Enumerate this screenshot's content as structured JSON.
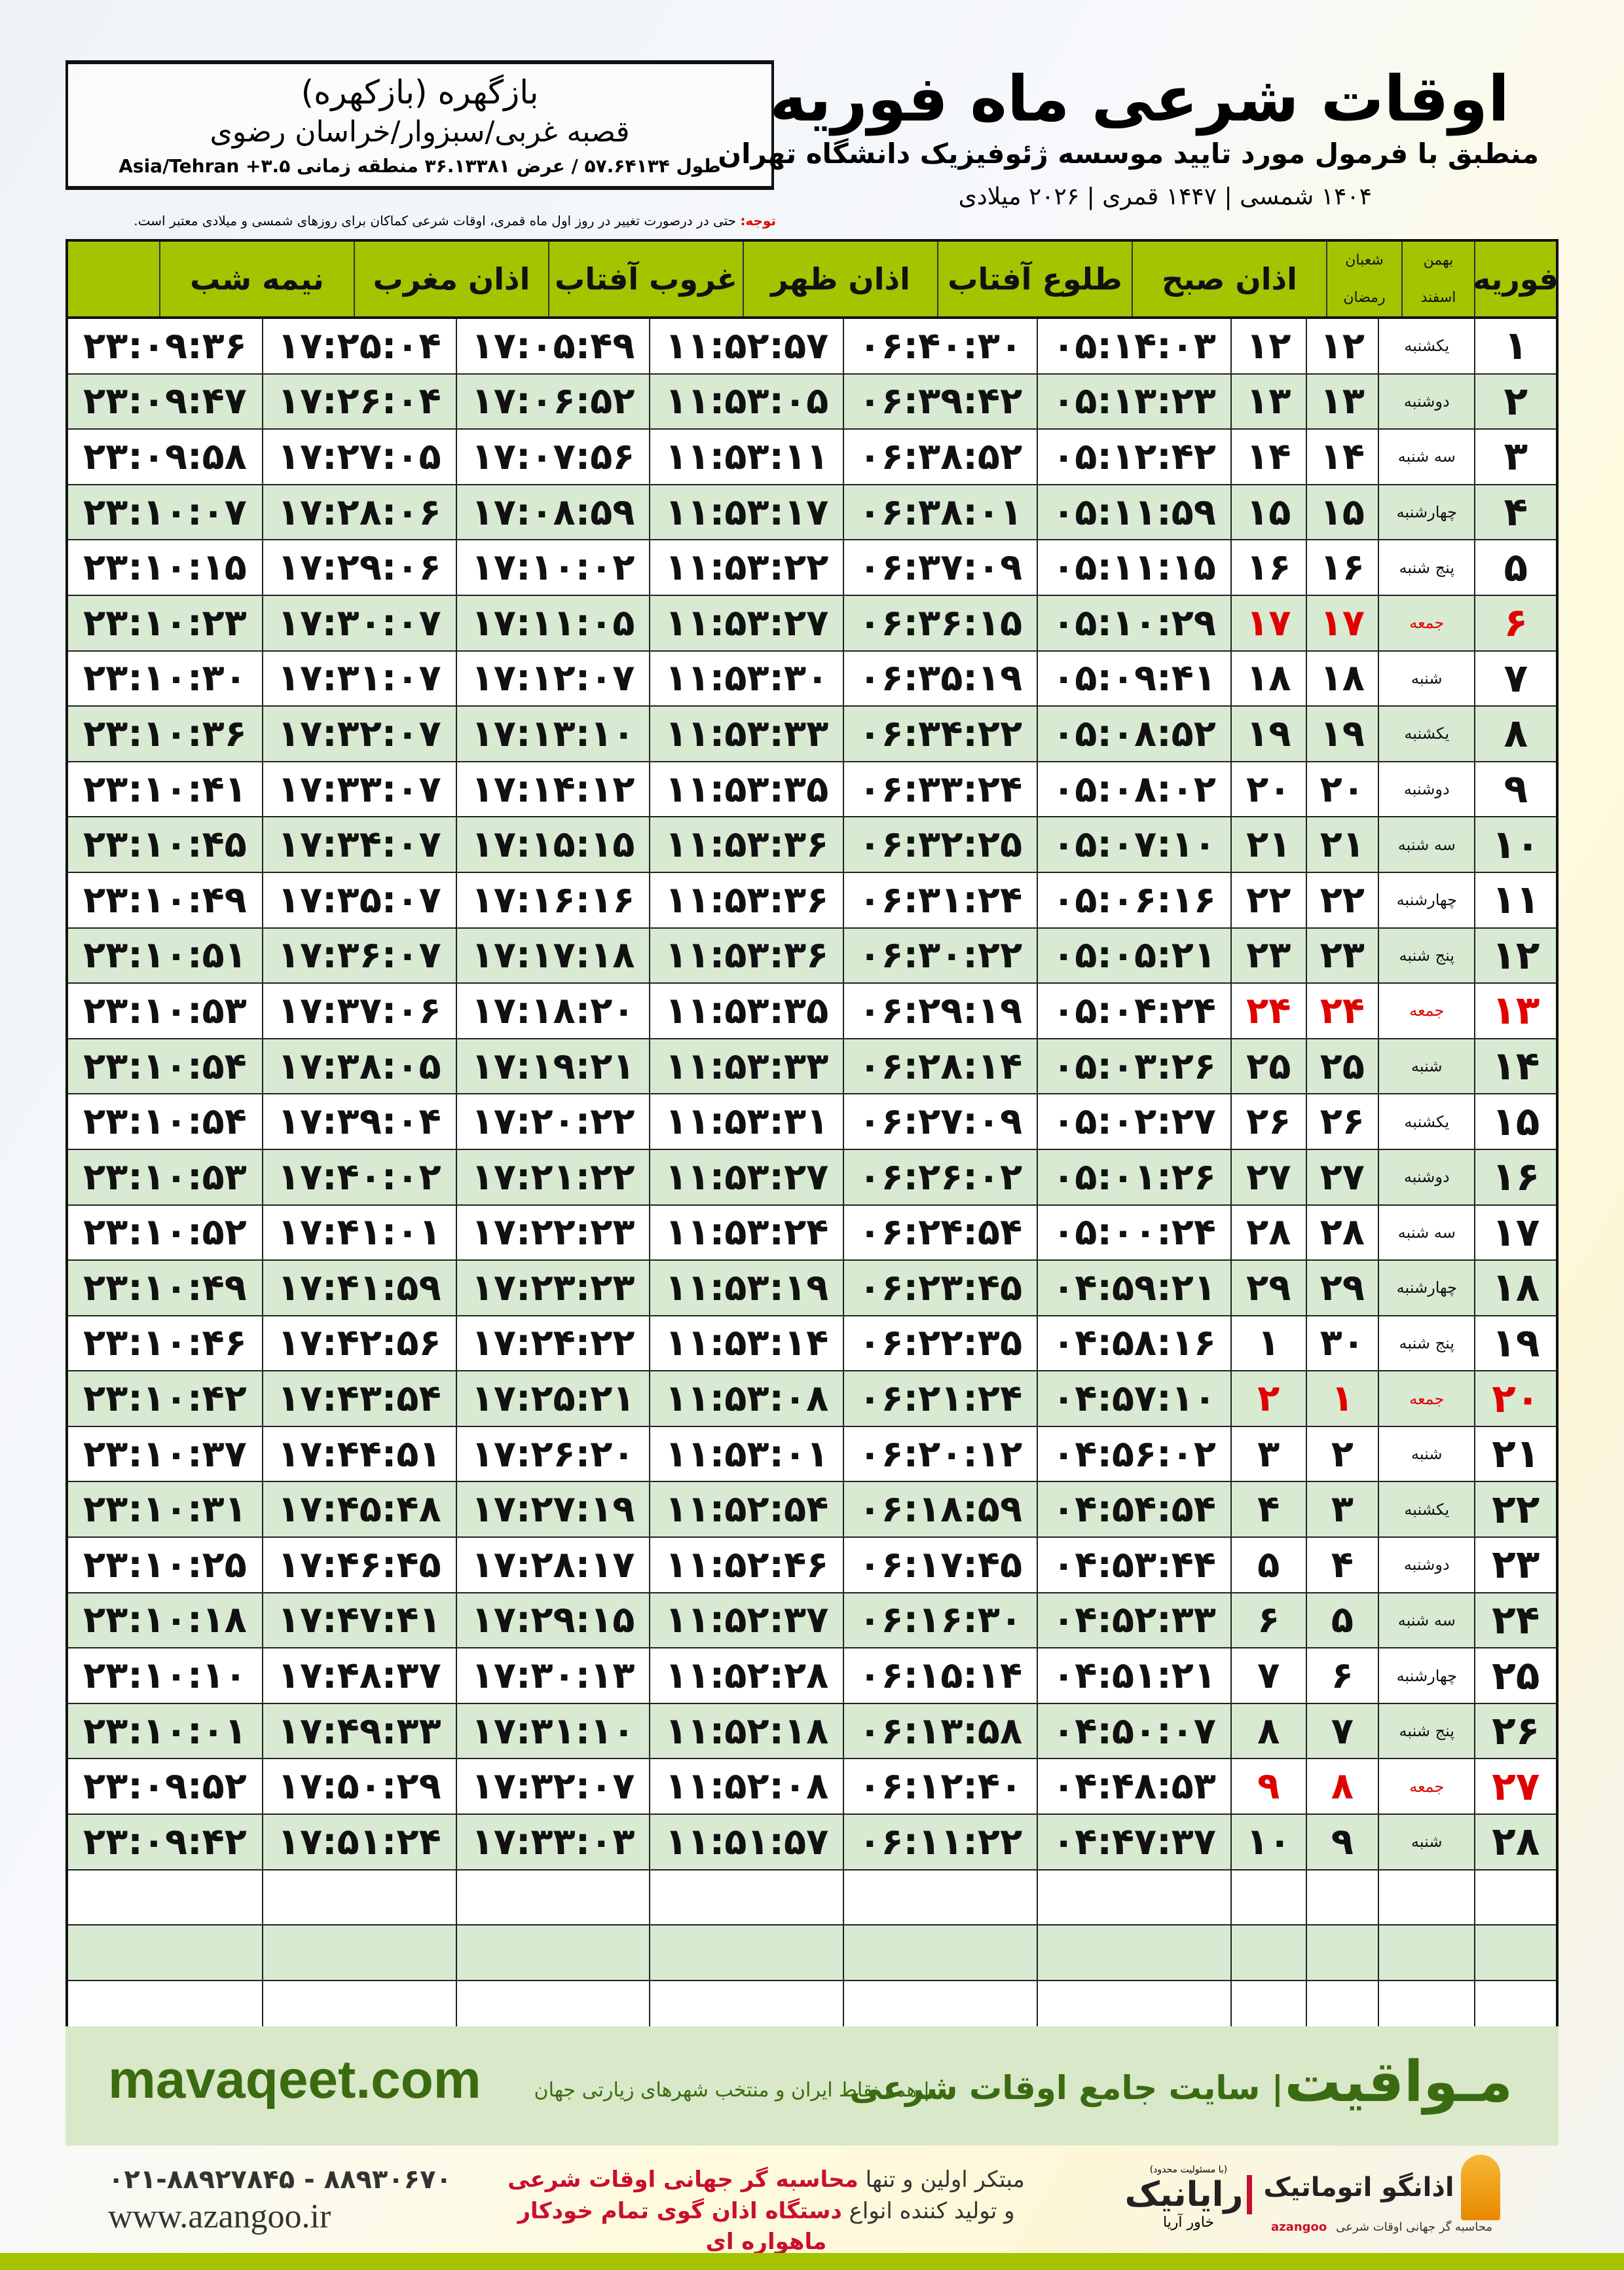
{
  "location": {
    "name": "بازگهره (بازکهره)",
    "region": "قصبه غربی/سبزوار/خراسان رضوی",
    "coords": "طول ۵۷.۶۴۱۳۴ / عرض ۳۶.۱۳۳۸۱ منطقه زمانی ۳.۵+ Asia/Tehran"
  },
  "header": {
    "title": "اوقات شرعی ماه فوریه",
    "subtitle": "منطبق با فرمول مورد تایید موسسه ژئوفیزیک دانشگاه تهران",
    "dateline": "۱۴۰۴ شمسی | ۱۴۴۷ قمری | ۲۰۲۶ میلادی"
  },
  "note": {
    "label": "توجه:",
    "text": " حتی در درصورت تغییر در روز اول ماه قمری، اوقات شرعی کماکان برای روزهای شمسی و میلادی معتبر است."
  },
  "colors": {
    "header_green": "#a4c400",
    "row_green": "#d9ead3",
    "friday_red": "#e00000",
    "brand_green": "#3a6b10"
  },
  "table": {
    "columns": {
      "day": "فوریه",
      "bahman": "بهمن",
      "esfand": "اسفند",
      "shaban": "شعبان",
      "ramazan": "رمضان",
      "sobh": "اذان صبح",
      "tolu": "طلوع آفتاب",
      "zohr": "اذان ظهر",
      "ghoroob": "غروب آفتاب",
      "maghreb": "اذان مغرب",
      "nimeh": "نیمه شب"
    },
    "rows": [
      [
        "۱",
        "یکشنبه",
        "۱۲",
        "۱۲",
        "۰۵:۱۴:۰۳",
        "۰۶:۴۰:۳۰",
        "۱۱:۵۲:۵۷",
        "۱۷:۰۵:۴۹",
        "۱۷:۲۵:۰۴",
        "۲۳:۰۹:۳۶"
      ],
      [
        "۲",
        "دوشنبه",
        "۱۳",
        "۱۳",
        "۰۵:۱۳:۲۳",
        "۰۶:۳۹:۴۲",
        "۱۱:۵۳:۰۵",
        "۱۷:۰۶:۵۲",
        "۱۷:۲۶:۰۴",
        "۲۳:۰۹:۴۷"
      ],
      [
        "۳",
        "سه شنبه",
        "۱۴",
        "۱۴",
        "۰۵:۱۲:۴۲",
        "۰۶:۳۸:۵۲",
        "۱۱:۵۳:۱۱",
        "۱۷:۰۷:۵۶",
        "۱۷:۲۷:۰۵",
        "۲۳:۰۹:۵۸"
      ],
      [
        "۴",
        "چهارشنبه",
        "۱۵",
        "۱۵",
        "۰۵:۱۱:۵۹",
        "۰۶:۳۸:۰۱",
        "۱۱:۵۳:۱۷",
        "۱۷:۰۸:۵۹",
        "۱۷:۲۸:۰۶",
        "۲۳:۱۰:۰۷"
      ],
      [
        "۵",
        "پنج شنبه",
        "۱۶",
        "۱۶",
        "۰۵:۱۱:۱۵",
        "۰۶:۳۷:۰۹",
        "۱۱:۵۳:۲۲",
        "۱۷:۱۰:۰۲",
        "۱۷:۲۹:۰۶",
        "۲۳:۱۰:۱۵"
      ],
      [
        "۶",
        "جمعه",
        "۱۷",
        "۱۷",
        "۰۵:۱۰:۲۹",
        "۰۶:۳۶:۱۵",
        "۱۱:۵۳:۲۷",
        "۱۷:۱۱:۰۵",
        "۱۷:۳۰:۰۷",
        "۲۳:۱۰:۲۳"
      ],
      [
        "۷",
        "شنبه",
        "۱۸",
        "۱۸",
        "۰۵:۰۹:۴۱",
        "۰۶:۳۵:۱۹",
        "۱۱:۵۳:۳۰",
        "۱۷:۱۲:۰۷",
        "۱۷:۳۱:۰۷",
        "۲۳:۱۰:۳۰"
      ],
      [
        "۸",
        "یکشنبه",
        "۱۹",
        "۱۹",
        "۰۵:۰۸:۵۲",
        "۰۶:۳۴:۲۲",
        "۱۱:۵۳:۳۳",
        "۱۷:۱۳:۱۰",
        "۱۷:۳۲:۰۷",
        "۲۳:۱۰:۳۶"
      ],
      [
        "۹",
        "دوشنبه",
        "۲۰",
        "۲۰",
        "۰۵:۰۸:۰۲",
        "۰۶:۳۳:۲۴",
        "۱۱:۵۳:۳۵",
        "۱۷:۱۴:۱۲",
        "۱۷:۳۳:۰۷",
        "۲۳:۱۰:۴۱"
      ],
      [
        "۱۰",
        "سه شنبه",
        "۲۱",
        "۲۱",
        "۰۵:۰۷:۱۰",
        "۰۶:۳۲:۲۵",
        "۱۱:۵۳:۳۶",
        "۱۷:۱۵:۱۵",
        "۱۷:۳۴:۰۷",
        "۲۳:۱۰:۴۵"
      ],
      [
        "۱۱",
        "چهارشنبه",
        "۲۲",
        "۲۲",
        "۰۵:۰۶:۱۶",
        "۰۶:۳۱:۲۴",
        "۱۱:۵۳:۳۶",
        "۱۷:۱۶:۱۶",
        "۱۷:۳۵:۰۷",
        "۲۳:۱۰:۴۹"
      ],
      [
        "۱۲",
        "پنج شنبه",
        "۲۳",
        "۲۳",
        "۰۵:۰۵:۲۱",
        "۰۶:۳۰:۲۲",
        "۱۱:۵۳:۳۶",
        "۱۷:۱۷:۱۸",
        "۱۷:۳۶:۰۷",
        "۲۳:۱۰:۵۱"
      ],
      [
        "۱۳",
        "جمعه",
        "۲۴",
        "۲۴",
        "۰۵:۰۴:۲۴",
        "۰۶:۲۹:۱۹",
        "۱۱:۵۳:۳۵",
        "۱۷:۱۸:۲۰",
        "۱۷:۳۷:۰۶",
        "۲۳:۱۰:۵۳"
      ],
      [
        "۱۴",
        "شنبه",
        "۲۵",
        "۲۵",
        "۰۵:۰۳:۲۶",
        "۰۶:۲۸:۱۴",
        "۱۱:۵۳:۳۳",
        "۱۷:۱۹:۲۱",
        "۱۷:۳۸:۰۵",
        "۲۳:۱۰:۵۴"
      ],
      [
        "۱۵",
        "یکشنبه",
        "۲۶",
        "۲۶",
        "۰۵:۰۲:۲۷",
        "۰۶:۲۷:۰۹",
        "۱۱:۵۳:۳۱",
        "۱۷:۲۰:۲۲",
        "۱۷:۳۹:۰۴",
        "۲۳:۱۰:۵۴"
      ],
      [
        "۱۶",
        "دوشنبه",
        "۲۷",
        "۲۷",
        "۰۵:۰۱:۲۶",
        "۰۶:۲۶:۰۲",
        "۱۱:۵۳:۲۷",
        "۱۷:۲۱:۲۲",
        "۱۷:۴۰:۰۲",
        "۲۳:۱۰:۵۳"
      ],
      [
        "۱۷",
        "سه شنبه",
        "۲۸",
        "۲۸",
        "۰۵:۰۰:۲۴",
        "۰۶:۲۴:۵۴",
        "۱۱:۵۳:۲۴",
        "۱۷:۲۲:۲۳",
        "۱۷:۴۱:۰۱",
        "۲۳:۱۰:۵۲"
      ],
      [
        "۱۸",
        "چهارشنبه",
        "۲۹",
        "۲۹",
        "۰۴:۵۹:۲۱",
        "۰۶:۲۳:۴۵",
        "۱۱:۵۳:۱۹",
        "۱۷:۲۳:۲۳",
        "۱۷:۴۱:۵۹",
        "۲۳:۱۰:۴۹"
      ],
      [
        "۱۹",
        "پنج شنبه",
        "۳۰",
        "۱",
        "۰۴:۵۸:۱۶",
        "۰۶:۲۲:۳۵",
        "۱۱:۵۳:۱۴",
        "۱۷:۲۴:۲۲",
        "۱۷:۴۲:۵۶",
        "۲۳:۱۰:۴۶"
      ],
      [
        "۲۰",
        "جمعه",
        "۱",
        "۲",
        "۰۴:۵۷:۱۰",
        "۰۶:۲۱:۲۴",
        "۱۱:۵۳:۰۸",
        "۱۷:۲۵:۲۱",
        "۱۷:۴۳:۵۴",
        "۲۳:۱۰:۴۲"
      ],
      [
        "۲۱",
        "شنبه",
        "۲",
        "۳",
        "۰۴:۵۶:۰۲",
        "۰۶:۲۰:۱۲",
        "۱۱:۵۳:۰۱",
        "۱۷:۲۶:۲۰",
        "۱۷:۴۴:۵۱",
        "۲۳:۱۰:۳۷"
      ],
      [
        "۲۲",
        "یکشنبه",
        "۳",
        "۴",
        "۰۴:۵۴:۵۴",
        "۰۶:۱۸:۵۹",
        "۱۱:۵۲:۵۴",
        "۱۷:۲۷:۱۹",
        "۱۷:۴۵:۴۸",
        "۲۳:۱۰:۳۱"
      ],
      [
        "۲۳",
        "دوشنبه",
        "۴",
        "۵",
        "۰۴:۵۳:۴۴",
        "۰۶:۱۷:۴۵",
        "۱۱:۵۲:۴۶",
        "۱۷:۲۸:۱۷",
        "۱۷:۴۶:۴۵",
        "۲۳:۱۰:۲۵"
      ],
      [
        "۲۴",
        "سه شنبه",
        "۵",
        "۶",
        "۰۴:۵۲:۳۳",
        "۰۶:۱۶:۳۰",
        "۱۱:۵۲:۳۷",
        "۱۷:۲۹:۱۵",
        "۱۷:۴۷:۴۱",
        "۲۳:۱۰:۱۸"
      ],
      [
        "۲۵",
        "چهارشنبه",
        "۶",
        "۷",
        "۰۴:۵۱:۲۱",
        "۰۶:۱۵:۱۴",
        "۱۱:۵۲:۲۸",
        "۱۷:۳۰:۱۳",
        "۱۷:۴۸:۳۷",
        "۲۳:۱۰:۱۰"
      ],
      [
        "۲۶",
        "پنج شنبه",
        "۷",
        "۸",
        "۰۴:۵۰:۰۷",
        "۰۶:۱۳:۵۸",
        "۱۱:۵۲:۱۸",
        "۱۷:۳۱:۱۰",
        "۱۷:۴۹:۳۳",
        "۲۳:۱۰:۰۱"
      ],
      [
        "۲۷",
        "جمعه",
        "۸",
        "۹",
        "۰۴:۴۸:۵۳",
        "۰۶:۱۲:۴۰",
        "۱۱:۵۲:۰۸",
        "۱۷:۳۲:۰۷",
        "۱۷:۵۰:۲۹",
        "۲۳:۰۹:۵۲"
      ],
      [
        "۲۸",
        "شنبه",
        "۹",
        "۱۰",
        "۰۴:۴۷:۳۷",
        "۰۶:۱۱:۲۲",
        "۱۱:۵۱:۵۷",
        "۱۷:۳۳:۰۳",
        "۱۷:۵۱:۲۴",
        "۲۳:۰۹:۴۲"
      ]
    ]
  },
  "footer": {
    "brand": "مـواقیت",
    "tagline": "| سایت جامع اوقات شرعی",
    "subtag": "| همه نقاط ایران و منتخب شهرهای زیارتی جهان",
    "domain": "mavaqeet.com"
  },
  "contact": {
    "phone": "۰۲۱-۸۸۹۲۷۸۴۵ - ۸۸۹۳۰۶۷۰",
    "website": "www.azangoo.ir"
  },
  "promo": {
    "line1_a": "مبتکر اولین و تنها ",
    "line1_b": "محاسبه گر جهانی اوقات شرعی",
    "line2_a": "و تولید کننده انواع ",
    "line2_b": "دستگاه اذان گوی تمام خودکار ماهواره ای"
  },
  "logos": {
    "rayanik": "رایانیک",
    "rayanik_sub": "خاور آریا",
    "rayanik_note": "(با مسئولیت محدود)",
    "azangoo": "اذانگو اتوماتیک",
    "azangoo_sub": "محاسبه گر جهانی اوقات شرعی",
    "azangoo_latin": "azangoo"
  }
}
